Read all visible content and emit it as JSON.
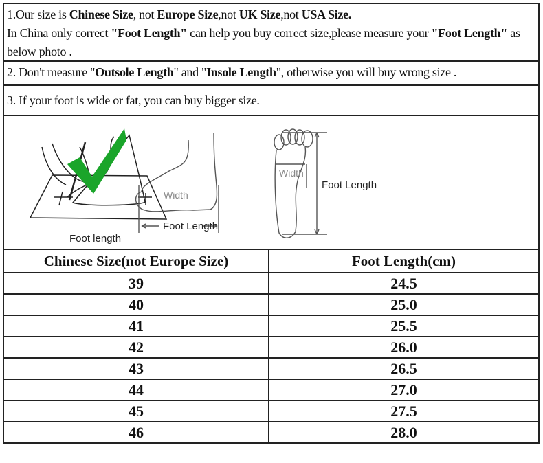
{
  "notes": {
    "n1": {
      "p1": "1.Our size is ",
      "b1": "Chinese Size",
      ",": "",
      "p2": ", not ",
      "b2": "Europe Size",
      "p3": ",not ",
      "b3": "UK Size",
      "p4": ",not ",
      "b4": "USA Size."
    },
    "n1b": {
      "p1": "In China only correct ",
      "b1": "\"Foot Length\"",
      "p2": " can help you buy correct size,please measure your ",
      "b2": "\"Foot Length\"",
      "p3": " as below photo ."
    },
    "n2": {
      "p1": "2. Don't measure \"",
      "b1": "Outsole Length",
      "p2": "\" and \"",
      "b2": "Insole Length",
      "p3": "\", otherwise you will buy wrong size ."
    },
    "n3": "3. If your foot is wide or fat, you can buy bigger size."
  },
  "illustrations": {
    "pic1_label": "Foot length",
    "pic2_width": "Width",
    "pic2_length": "Foot Length",
    "pic3_width": "Width",
    "pic3_length": "Foot Length",
    "check_color": "#1aa52a"
  },
  "table": {
    "headers": [
      "Chinese Size(not Europe Size)",
      "Foot Length(cm)"
    ],
    "rows": [
      [
        "39",
        "24.5"
      ],
      [
        "40",
        "25.0"
      ],
      [
        "41",
        "25.5"
      ],
      [
        "42",
        "26.0"
      ],
      [
        "43",
        "26.5"
      ],
      [
        "44",
        "27.0"
      ],
      [
        "45",
        "27.5"
      ],
      [
        "46",
        "28.0"
      ]
    ]
  }
}
